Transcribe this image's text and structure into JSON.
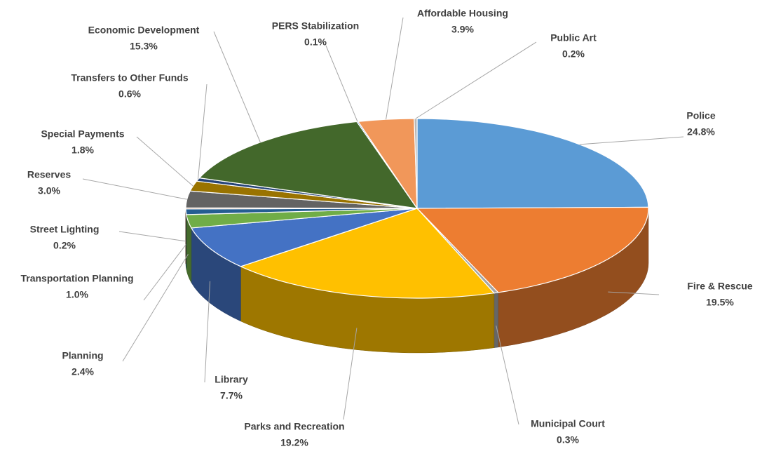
{
  "chart_data": {
    "type": "pie",
    "categories": [
      "Police",
      "Fire & Rescue",
      "Municipal Court",
      "Parks and Recreation",
      "Library",
      "Planning",
      "Transportation Planning",
      "Street Lighting",
      "Reserves",
      "Special Payments",
      "Transfers to Other Funds",
      "Economic Development",
      "PERS Stabilization",
      "Affordable Housing",
      "Public Art"
    ],
    "values": [
      24.8,
      19.5,
      0.3,
      19.2,
      7.7,
      2.4,
      1.0,
      0.2,
      3.0,
      1.8,
      0.6,
      15.3,
      0.1,
      3.9,
      0.2
    ],
    "value_labels": [
      "24.8%",
      "19.5%",
      "0.3%",
      "19.2%",
      "7.7%",
      "2.4%",
      "1.0%",
      "0.2%",
      "3.0%",
      "1.8%",
      "0.6%",
      "15.3%",
      "0.1%",
      "3.9%",
      "0.2%"
    ],
    "colors": [
      "#5b9bd5",
      "#ed7d31",
      "#a5a5a5",
      "#ffc000",
      "#4472c4",
      "#70ad47",
      "#255e91",
      "#9e480e",
      "#636363",
      "#997300",
      "#264478",
      "#43682b",
      "#698ed0",
      "#f1975a",
      "#b7b7b7"
    ]
  }
}
